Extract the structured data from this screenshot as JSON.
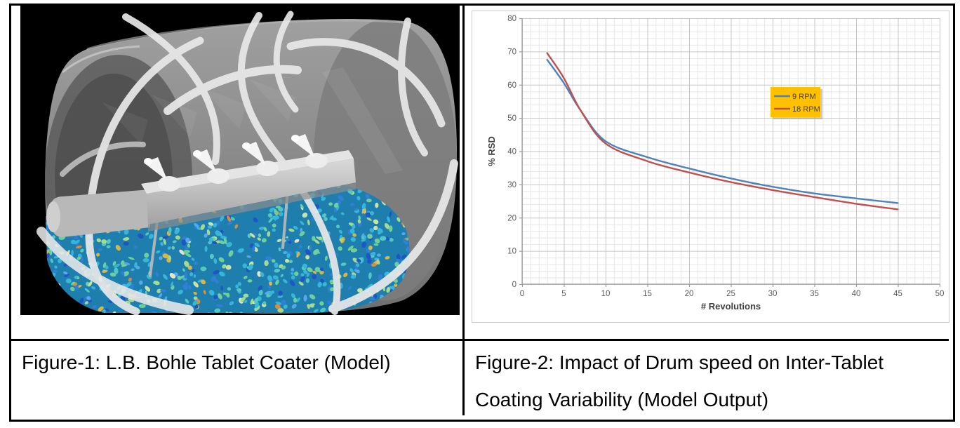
{
  "table": {
    "captions": {
      "figure1": "Figure-1: L.B. Bohle Tablet Coater (Model)",
      "figure2_line1": "Figure-2: Impact of Drum speed on Inter-Tablet",
      "figure2_line2": "Coating Variability (Model Output)"
    }
  },
  "figure1": {
    "background": "#000000",
    "drum_color": "#8a8a8a",
    "baffle_color": "#e9e9e9",
    "bed_base_color": "#1e7fae",
    "particle_palette": [
      {
        "c": "#37b6d9",
        "w": 0.26
      },
      {
        "c": "#2f80d6",
        "w": 0.14
      },
      {
        "c": "#1f55c4",
        "w": 0.08
      },
      {
        "c": "#52c8c0",
        "w": 0.1
      },
      {
        "c": "#6fcf9a",
        "w": 0.12
      },
      {
        "c": "#a5d98f",
        "w": 0.1
      },
      {
        "c": "#c9e3a6",
        "w": 0.05
      },
      {
        "c": "#56a8e8",
        "w": 0.07
      },
      {
        "c": "#d9b544",
        "w": 0.05
      },
      {
        "c": "#d98c3c",
        "w": 0.02
      },
      {
        "c": "#e8e3c9",
        "w": 0.01
      }
    ]
  },
  "chart_data": {
    "type": "line",
    "title": "",
    "xlabel": "# Revolutions",
    "ylabel": "% RSD",
    "xlim": [
      0,
      50
    ],
    "ylim": [
      0,
      80
    ],
    "xticks": [
      0,
      5,
      10,
      15,
      20,
      25,
      30,
      35,
      40,
      45,
      50
    ],
    "yticks": [
      0,
      10,
      20,
      30,
      40,
      50,
      60,
      70,
      80
    ],
    "minor_grid": {
      "x_step": 1,
      "y_step": 2
    },
    "grid": true,
    "legend": {
      "position": "inside-upper-right",
      "fill": "#FFC000",
      "text_color": "#3f3f3f"
    },
    "x": [
      3,
      5,
      7,
      10,
      15,
      20,
      25,
      30,
      35,
      40,
      45
    ],
    "series": [
      {
        "name": "9 RPM",
        "color": "#4F81BD",
        "values": [
          67.5,
          60.5,
          52.3,
          43.0,
          38.2,
          34.8,
          31.8,
          29.3,
          27.3,
          25.8,
          24.4
        ]
      },
      {
        "name": "18 RPM",
        "color": "#C0504D",
        "values": [
          69.5,
          62.0,
          52.3,
          42.3,
          37.0,
          33.6,
          30.7,
          28.3,
          26.2,
          24.2,
          22.5
        ]
      }
    ],
    "axis_label_color": "#404040",
    "tick_label_color": "#595959"
  }
}
